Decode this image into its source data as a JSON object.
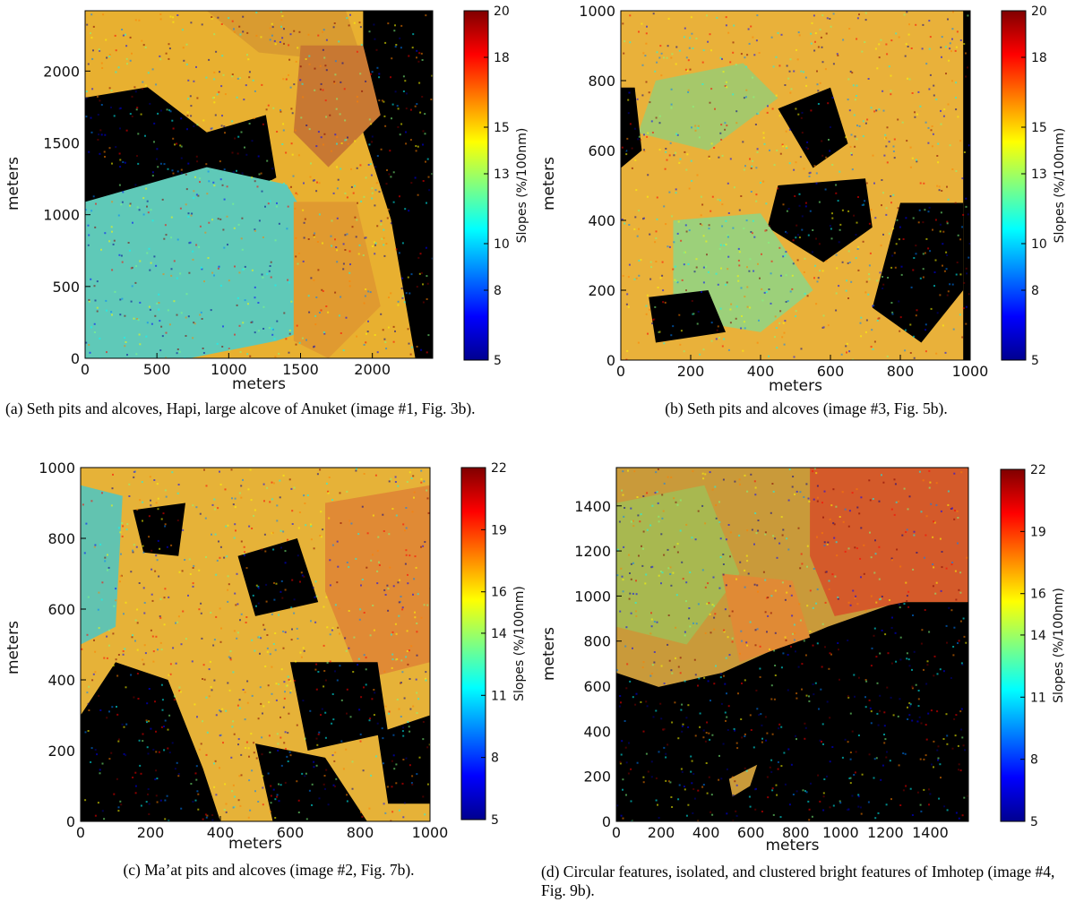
{
  "charts": [
    {
      "id": "a",
      "caption": "(a) Seth pits and alcoves, Hapi, large alcove of Anuket (image #1, Fig. 3b).",
      "chart_data": {
        "type": "heatmap",
        "xlabel": "meters",
        "ylabel": "meters",
        "xlim": [
          0,
          2420
        ],
        "ylim": [
          0,
          2420
        ],
        "xticks": [
          "0",
          "500",
          "1000",
          "1500",
          "2000"
        ],
        "xtick_values": [
          0,
          500,
          1000,
          1500,
          2000
        ],
        "yticks": [
          "0",
          "500",
          "1000",
          "1500",
          "2000"
        ],
        "ytick_values": [
          0,
          500,
          1000,
          1500,
          2000
        ],
        "colorbar": {
          "label": "Slopes (%/100nm)",
          "range": [
            5,
            20
          ],
          "ticks": [
            "5",
            "8",
            "10",
            "13",
            "15",
            "18",
            "20"
          ],
          "tick_values": [
            5,
            8,
            10,
            13,
            15,
            18,
            20
          ]
        },
        "dominant_values": "mostly 15–18 % slopes with a 10–12 % region in the lower-left; black areas are no data"
      }
    },
    {
      "id": "b",
      "caption": "(b) Seth pits and alcoves (image #3, Fig. 5b).",
      "chart_data": {
        "type": "heatmap",
        "xlabel": "meters",
        "ylabel": "meters",
        "xlim": [
          0,
          1000
        ],
        "ylim": [
          0,
          1000
        ],
        "xticks": [
          "0",
          "200",
          "400",
          "600",
          "800",
          "1000"
        ],
        "xtick_values": [
          0,
          200,
          400,
          600,
          800,
          1000
        ],
        "yticks": [
          "0",
          "200",
          "400",
          "600",
          "800",
          "1000"
        ],
        "ytick_values": [
          0,
          200,
          400,
          600,
          800,
          1000
        ],
        "colorbar": {
          "label": "Slopes (%/100nm)",
          "range": [
            5,
            20
          ],
          "ticks": [
            "5",
            "8",
            "10",
            "13",
            "15",
            "18",
            "20"
          ],
          "tick_values": [
            5,
            8,
            10,
            13,
            15,
            18,
            20
          ]
        },
        "dominant_values": "mostly 14–17 % slopes with large black pits"
      }
    },
    {
      "id": "c",
      "caption": "(c) Ma’at pits and alcoves (image #2, Fig. 7b).",
      "chart_data": {
        "type": "heatmap",
        "xlabel": "meters",
        "ylabel": "meters",
        "xlim": [
          0,
          1000
        ],
        "ylim": [
          0,
          1000
        ],
        "xticks": [
          "0",
          "200",
          "400",
          "600",
          "800",
          "1000"
        ],
        "xtick_values": [
          0,
          200,
          400,
          600,
          800,
          1000
        ],
        "yticks": [
          "0",
          "200",
          "400",
          "600",
          "800",
          "1000"
        ],
        "ytick_values": [
          0,
          200,
          400,
          600,
          800,
          1000
        ],
        "colorbar": {
          "label": "Slopes (%/100nm)",
          "range": [
            5,
            22
          ],
          "ticks": [
            "5",
            "8",
            "11",
            "14",
            "16",
            "19",
            "22"
          ],
          "tick_values": [
            5,
            8,
            11,
            14,
            16,
            19,
            22
          ]
        },
        "dominant_values": "mostly 16–19 % slopes with black pits"
      }
    },
    {
      "id": "d",
      "caption": "(d) Circular features, isolated, and clustered bright features of Imhotep (image #4, Fig. 9b).",
      "chart_data": {
        "type": "heatmap",
        "xlabel": "meters",
        "ylabel": "meters",
        "xlim": [
          0,
          1570
        ],
        "ylim": [
          0,
          1570
        ],
        "xticks": [
          "0",
          "200",
          "400",
          "600",
          "800",
          "1000",
          "1200",
          "1400"
        ],
        "xtick_values": [
          0,
          200,
          400,
          600,
          800,
          1000,
          1200,
          1400
        ],
        "yticks": [
          "0",
          "200",
          "400",
          "600",
          "800",
          "1000",
          "1200",
          "1400"
        ],
        "ytick_values": [
          0,
          200,
          400,
          600,
          800,
          1000,
          1200,
          1400
        ],
        "colorbar": {
          "label": "Slopes (%/100nm)",
          "range": [
            5,
            22
          ],
          "ticks": [
            "5",
            "8",
            "11",
            "14",
            "16",
            "19",
            "22"
          ],
          "tick_values": [
            5,
            8,
            11,
            14,
            16,
            19,
            22
          ]
        },
        "dominant_values": "data only in upper-left/upper region, 15–21 %; lower-right black (no data)"
      }
    }
  ]
}
